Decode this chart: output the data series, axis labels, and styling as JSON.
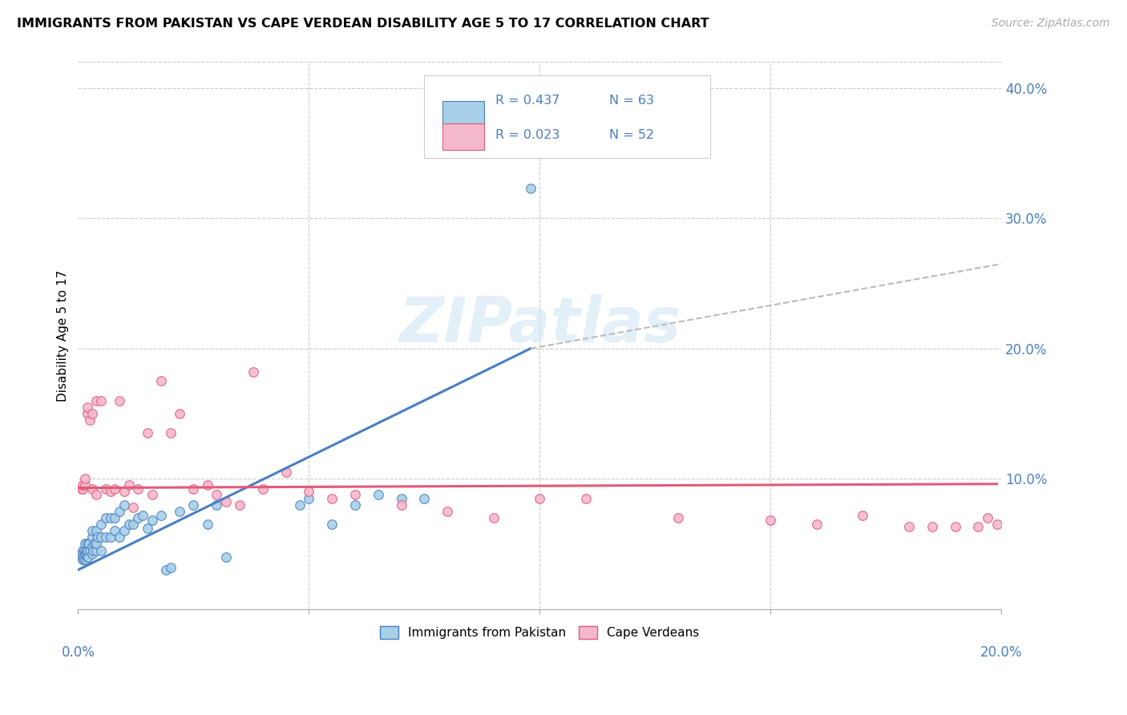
{
  "title": "IMMIGRANTS FROM PAKISTAN VS CAPE VERDEAN DISABILITY AGE 5 TO 17 CORRELATION CHART",
  "source": "Source: ZipAtlas.com",
  "ylabel": "Disability Age 5 to 17",
  "xlim": [
    0.0,
    0.2
  ],
  "ylim": [
    0.0,
    0.42
  ],
  "yticks": [
    0.0,
    0.1,
    0.2,
    0.3,
    0.4
  ],
  "ytick_labels": [
    "",
    "10.0%",
    "20.0%",
    "30.0%",
    "40.0%"
  ],
  "color_pakistan": "#a8d0e8",
  "color_cape_verdean": "#f4b8cc",
  "color_line_pakistan": "#4a7fc1",
  "color_line_cape_verdean": "#e05a7a",
  "color_line_dashed": "#bbbbbb",
  "background_color": "#ffffff",
  "watermark": "ZIPatlas",
  "pakistan_x": [
    0.0008,
    0.0009,
    0.001,
    0.001,
    0.0012,
    0.0013,
    0.0014,
    0.0015,
    0.0015,
    0.0016,
    0.0017,
    0.0018,
    0.002,
    0.002,
    0.002,
    0.0022,
    0.0023,
    0.0025,
    0.003,
    0.003,
    0.003,
    0.003,
    0.0032,
    0.0035,
    0.004,
    0.004,
    0.004,
    0.0042,
    0.005,
    0.005,
    0.005,
    0.006,
    0.006,
    0.007,
    0.007,
    0.008,
    0.008,
    0.009,
    0.009,
    0.01,
    0.01,
    0.011,
    0.012,
    0.013,
    0.014,
    0.015,
    0.016,
    0.018,
    0.019,
    0.02,
    0.022,
    0.025,
    0.028,
    0.03,
    0.032,
    0.048,
    0.05,
    0.055,
    0.06,
    0.065,
    0.07,
    0.075,
    0.098
  ],
  "pakistan_y": [
    0.04,
    0.045,
    0.038,
    0.042,
    0.04,
    0.045,
    0.038,
    0.042,
    0.05,
    0.038,
    0.042,
    0.045,
    0.04,
    0.045,
    0.05,
    0.04,
    0.05,
    0.045,
    0.042,
    0.048,
    0.055,
    0.06,
    0.045,
    0.05,
    0.045,
    0.05,
    0.06,
    0.055,
    0.045,
    0.055,
    0.065,
    0.055,
    0.07,
    0.055,
    0.07,
    0.06,
    0.07,
    0.055,
    0.075,
    0.06,
    0.08,
    0.065,
    0.065,
    0.07,
    0.072,
    0.062,
    0.068,
    0.072,
    0.03,
    0.032,
    0.075,
    0.08,
    0.065,
    0.08,
    0.04,
    0.08,
    0.085,
    0.065,
    0.08,
    0.088,
    0.085,
    0.085,
    0.323
  ],
  "cape_verdean_x": [
    0.0008,
    0.001,
    0.001,
    0.0015,
    0.0015,
    0.002,
    0.002,
    0.0025,
    0.003,
    0.003,
    0.004,
    0.004,
    0.005,
    0.006,
    0.007,
    0.008,
    0.009,
    0.01,
    0.011,
    0.012,
    0.013,
    0.015,
    0.016,
    0.018,
    0.02,
    0.022,
    0.025,
    0.028,
    0.03,
    0.032,
    0.035,
    0.038,
    0.04,
    0.045,
    0.05,
    0.055,
    0.06,
    0.07,
    0.08,
    0.09,
    0.1,
    0.11,
    0.13,
    0.15,
    0.16,
    0.17,
    0.18,
    0.185,
    0.19,
    0.195,
    0.197,
    0.199
  ],
  "cape_verdean_y": [
    0.092,
    0.092,
    0.095,
    0.095,
    0.1,
    0.15,
    0.155,
    0.145,
    0.15,
    0.092,
    0.088,
    0.16,
    0.16,
    0.092,
    0.09,
    0.092,
    0.16,
    0.09,
    0.095,
    0.078,
    0.092,
    0.135,
    0.088,
    0.175,
    0.135,
    0.15,
    0.092,
    0.095,
    0.088,
    0.082,
    0.08,
    0.182,
    0.092,
    0.105,
    0.09,
    0.085,
    0.088,
    0.08,
    0.075,
    0.07,
    0.085,
    0.085,
    0.07,
    0.068,
    0.065,
    0.072,
    0.063,
    0.063,
    0.063,
    0.063,
    0.07,
    0.065
  ],
  "line_pakistan_x0": 0.0,
  "line_pakistan_y0": 0.03,
  "line_pakistan_x1": 0.098,
  "line_pakistan_y1": 0.2,
  "line_dashed_x0": 0.098,
  "line_dashed_y0": 0.2,
  "line_dashed_x1": 0.2,
  "line_dashed_y1": 0.265,
  "line_cape_x0": 0.0,
  "line_cape_y0": 0.093,
  "line_cape_x1": 0.199,
  "line_cape_y1": 0.096
}
